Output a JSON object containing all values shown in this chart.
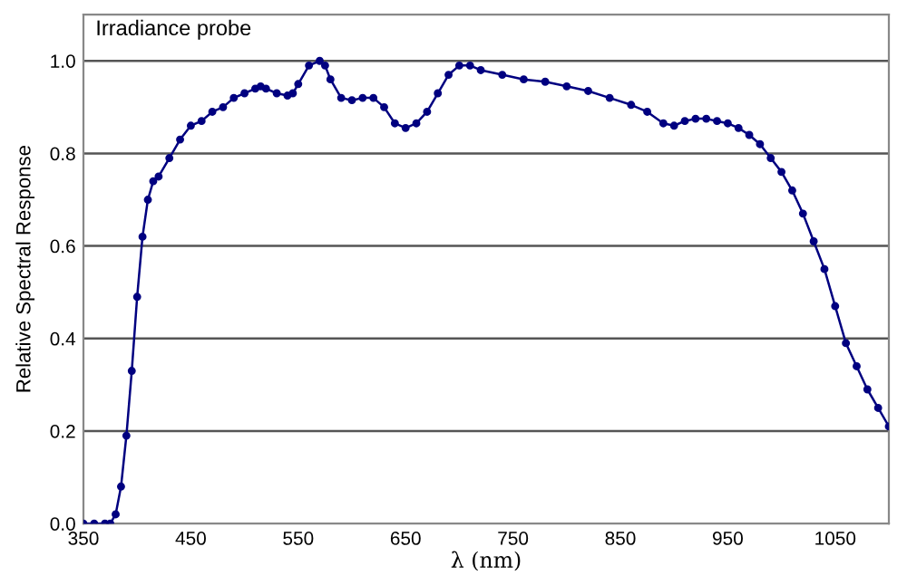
{
  "chart_data": {
    "type": "line",
    "title": "Irradiance probe",
    "xlabel": "λ (nm)",
    "ylabel": "Relative Spectral Response",
    "xlim": [
      350,
      1100
    ],
    "xticks": [
      350,
      450,
      550,
      650,
      750,
      850,
      950,
      1050
    ],
    "ylim": [
      0,
      1.1
    ],
    "yticks": [
      {
        "value": 0,
        "label": "0.0"
      },
      {
        "value": 0.2,
        "label": "0.2"
      },
      {
        "value": 0.4,
        "label": "0.4"
      },
      {
        "value": 0.6,
        "label": "0.6"
      },
      {
        "value": 0.8,
        "label": "0.8"
      },
      {
        "value": 1.0,
        "label": "1.0"
      }
    ],
    "grid": "y",
    "marker": "circle",
    "line_style": "solid",
    "legend": false,
    "series": [
      {
        "color": "#000080",
        "x": [
          350,
          360,
          370,
          375,
          380,
          385,
          390,
          395,
          400,
          405,
          410,
          415,
          420,
          430,
          440,
          450,
          460,
          470,
          480,
          490,
          500,
          510,
          515,
          520,
          530,
          540,
          545,
          550,
          560,
          570,
          575,
          580,
          590,
          600,
          610,
          620,
          630,
          640,
          650,
          660,
          670,
          680,
          690,
          700,
          710,
          720,
          740,
          760,
          780,
          800,
          820,
          840,
          860,
          875,
          890,
          900,
          910,
          920,
          930,
          940,
          950,
          960,
          970,
          980,
          990,
          1000,
          1010,
          1020,
          1030,
          1040,
          1050,
          1060,
          1070,
          1080,
          1090,
          1100
        ],
        "values": [
          0,
          0,
          0,
          0,
          0.02,
          0.08,
          0.19,
          0.33,
          0.49,
          0.62,
          0.7,
          0.74,
          0.75,
          0.79,
          0.83,
          0.86,
          0.87,
          0.89,
          0.9,
          0.92,
          0.93,
          0.94,
          0.945,
          0.94,
          0.93,
          0.925,
          0.93,
          0.95,
          0.99,
          1.0,
          0.99,
          0.96,
          0.92,
          0.915,
          0.92,
          0.92,
          0.9,
          0.865,
          0.855,
          0.865,
          0.89,
          0.93,
          0.97,
          0.99,
          0.99,
          0.98,
          0.97,
          0.96,
          0.955,
          0.945,
          0.935,
          0.92,
          0.905,
          0.89,
          0.865,
          0.86,
          0.87,
          0.875,
          0.875,
          0.87,
          0.865,
          0.855,
          0.84,
          0.82,
          0.79,
          0.76,
          0.72,
          0.67,
          0.61,
          0.55,
          0.47,
          0.39,
          0.34,
          0.29,
          0.25,
          0.21
        ]
      }
    ]
  }
}
